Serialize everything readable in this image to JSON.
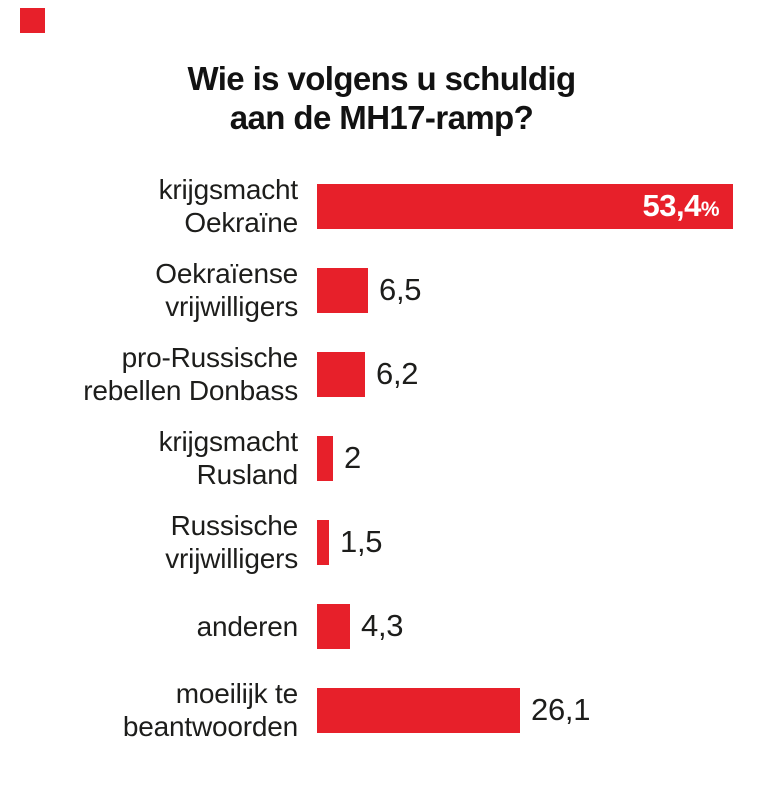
{
  "brand": {
    "square_color": "#e7202a"
  },
  "title": {
    "lines": [
      "Wie is volgens u schuldig",
      "aan de MH17-ramp?"
    ],
    "full": "Wie is volgens u schuldig aan de MH17-ramp?"
  },
  "chart_data": {
    "type": "bar",
    "orientation": "horizontal",
    "title": "Wie is volgens u schuldig aan de MH17-ramp?",
    "bar_color": "#e7202a",
    "text_color": "#1d1d1b",
    "inside_value_color": "#ffffff",
    "unit": "%",
    "xlim": [
      0,
      55
    ],
    "grid": false,
    "legend": false,
    "categories": [
      "krijgsmacht Oekraïne",
      "Oekraïense vrijwilligers",
      "pro-Russische rebellen Donbass",
      "krijgsmacht Rusland",
      "Russische vrijwilligers",
      "anderen",
      "moeilijk te beantwoorden"
    ],
    "values": [
      53.4,
      6.5,
      6.2,
      2,
      1.5,
      4.3,
      26.1
    ],
    "items": [
      {
        "label_lines": [
          "krijgsmacht",
          "Oekraïne"
        ],
        "value": 53.4,
        "value_display": "53,4",
        "unit_suffix": "%",
        "value_inside": true
      },
      {
        "label_lines": [
          "Oekraïense",
          "vrijwilligers"
        ],
        "value": 6.5,
        "value_display": "6,5",
        "unit_suffix": "",
        "value_inside": false
      },
      {
        "label_lines": [
          "pro-Russische",
          "rebellen Donbass"
        ],
        "value": 6.2,
        "value_display": "6,2",
        "unit_suffix": "",
        "value_inside": false
      },
      {
        "label_lines": [
          "krijgsmacht",
          "Rusland"
        ],
        "value": 2,
        "value_display": "2",
        "unit_suffix": "",
        "value_inside": false
      },
      {
        "label_lines": [
          "Russische",
          "vrijwilligers"
        ],
        "value": 1.5,
        "value_display": "1,5",
        "unit_suffix": "",
        "value_inside": false
      },
      {
        "label_lines": [
          "anderen"
        ],
        "value": 4.3,
        "value_display": "4,3",
        "unit_suffix": "",
        "value_inside": false
      },
      {
        "label_lines": [
          "moeilijk te",
          "beantwoorden"
        ],
        "value": 26.1,
        "value_display": "26,1",
        "unit_suffix": "",
        "value_inside": false
      }
    ]
  }
}
